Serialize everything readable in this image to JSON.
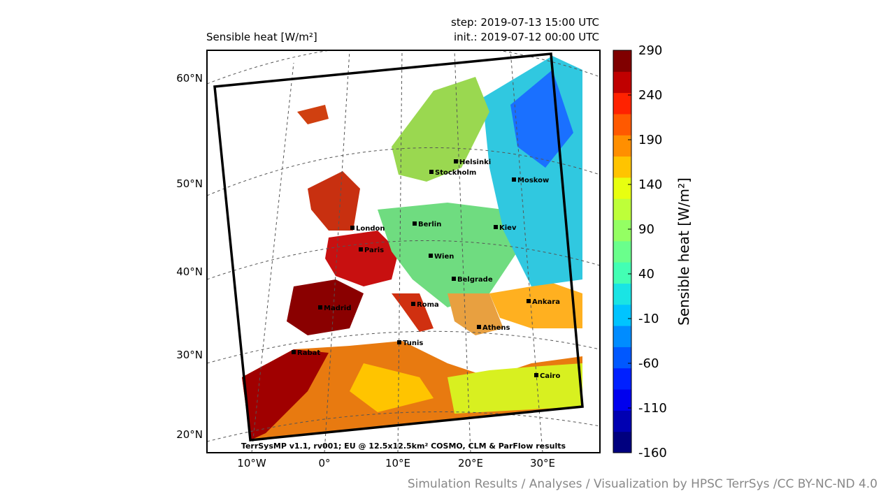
{
  "header": {
    "title": "Sensible heat [W/m²]",
    "step": "step: 2019-07-13 15:00 UTC",
    "init": "init.: 2019-07-12 00:00 UTC"
  },
  "map": {
    "lat_labels": [
      "60°N",
      "50°N",
      "40°N",
      "30°N",
      "20°N"
    ],
    "lon_labels": [
      "10°W",
      "0°",
      "10°E",
      "20°E",
      "30°E"
    ],
    "cities": [
      "Helsinki",
      "Stockholm",
      "Moskow",
      "London",
      "Berlin",
      "Kiev",
      "Paris",
      "Wien",
      "Belgrade",
      "Madrid",
      "Roma",
      "Ankara",
      "Athens",
      "Tunis",
      "Rabat",
      "Cairo"
    ],
    "model_note": "TerrSysMP v1.1, rv001; EU @ 12.5x12.5km² COSMO, CLM & ParFlow results"
  },
  "colorbar": {
    "label": "Sensible heat [W/m²]",
    "lim": [
      -160,
      290
    ],
    "ticks": [
      290,
      240,
      190,
      140,
      90,
      40,
      -10,
      -60,
      -110,
      -160
    ],
    "colors": [
      "#00007f",
      "#0000b2",
      "#0000ee",
      "#0020ff",
      "#0058ff",
      "#008cff",
      "#00c4ff",
      "#1ae4e4",
      "#43ffb4",
      "#6aff8c",
      "#94ff63",
      "#beff39",
      "#e8ff10",
      "#ffc400",
      "#ff8f00",
      "#ff5900",
      "#ff2200",
      "#c00000",
      "#800000"
    ]
  },
  "footer": "Simulation Results / Analyses / Visualization by HPSC TerrSys /CC BY-NC-ND 4.0"
}
